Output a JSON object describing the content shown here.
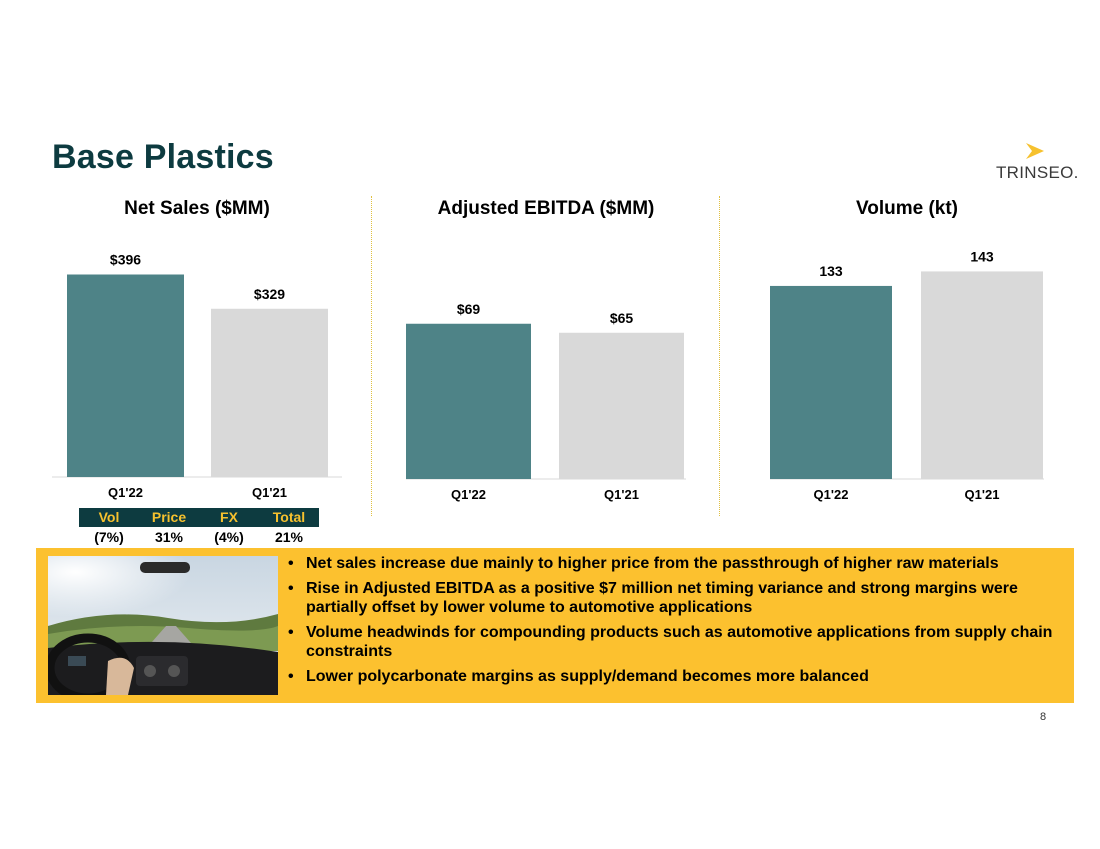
{
  "page": {
    "title": "Base Plastics",
    "number": "8"
  },
  "logo": {
    "text": "TRINSEO.",
    "mark_color": "#f6c12e",
    "icon": "chevron-arrow-icon"
  },
  "colors": {
    "primary_bar": "#4e8387",
    "comparison_bar": "#d9d9d9",
    "dark_teal": "#0d3b40",
    "accent_yellow": "#fcc12f"
  },
  "chart_data": [
    {
      "type": "bar",
      "title": "Net Sales ($MM)",
      "categories": [
        "Q1'22",
        "Q1'21"
      ],
      "values": [
        396,
        329
      ],
      "labels": [
        "$396",
        "$329"
      ],
      "ylim": [
        0,
        440
      ]
    },
    {
      "type": "bar",
      "title": "Adjusted EBITDA ($MM)",
      "categories": [
        "Q1'22",
        "Q1'21"
      ],
      "values": [
        69,
        65
      ],
      "labels": [
        "$69",
        "$65"
      ],
      "ylim": [
        0,
        100
      ]
    },
    {
      "type": "bar",
      "title": "Volume (kt)",
      "categories": [
        "Q1'22",
        "Q1'21"
      ],
      "values": [
        133,
        143
      ],
      "labels": [
        "133",
        "143"
      ],
      "ylim": [
        0,
        155
      ]
    }
  ],
  "bridge": {
    "headers": [
      "Vol",
      "Price",
      "FX",
      "Total"
    ],
    "values": [
      "(7%)",
      "31%",
      "(4%)",
      "21%"
    ]
  },
  "highlights": [
    "Net sales increase due mainly to higher price from the passthrough of higher raw materials",
    "Rise in Adjusted EBITDA as a positive $7 million net timing variance and strong margins were partially offset by lower volume to automotive applications",
    "Volume headwinds for compounding products such as automotive applications from supply chain constraints",
    "Lower polycarbonate margins as supply/demand becomes more balanced"
  ]
}
